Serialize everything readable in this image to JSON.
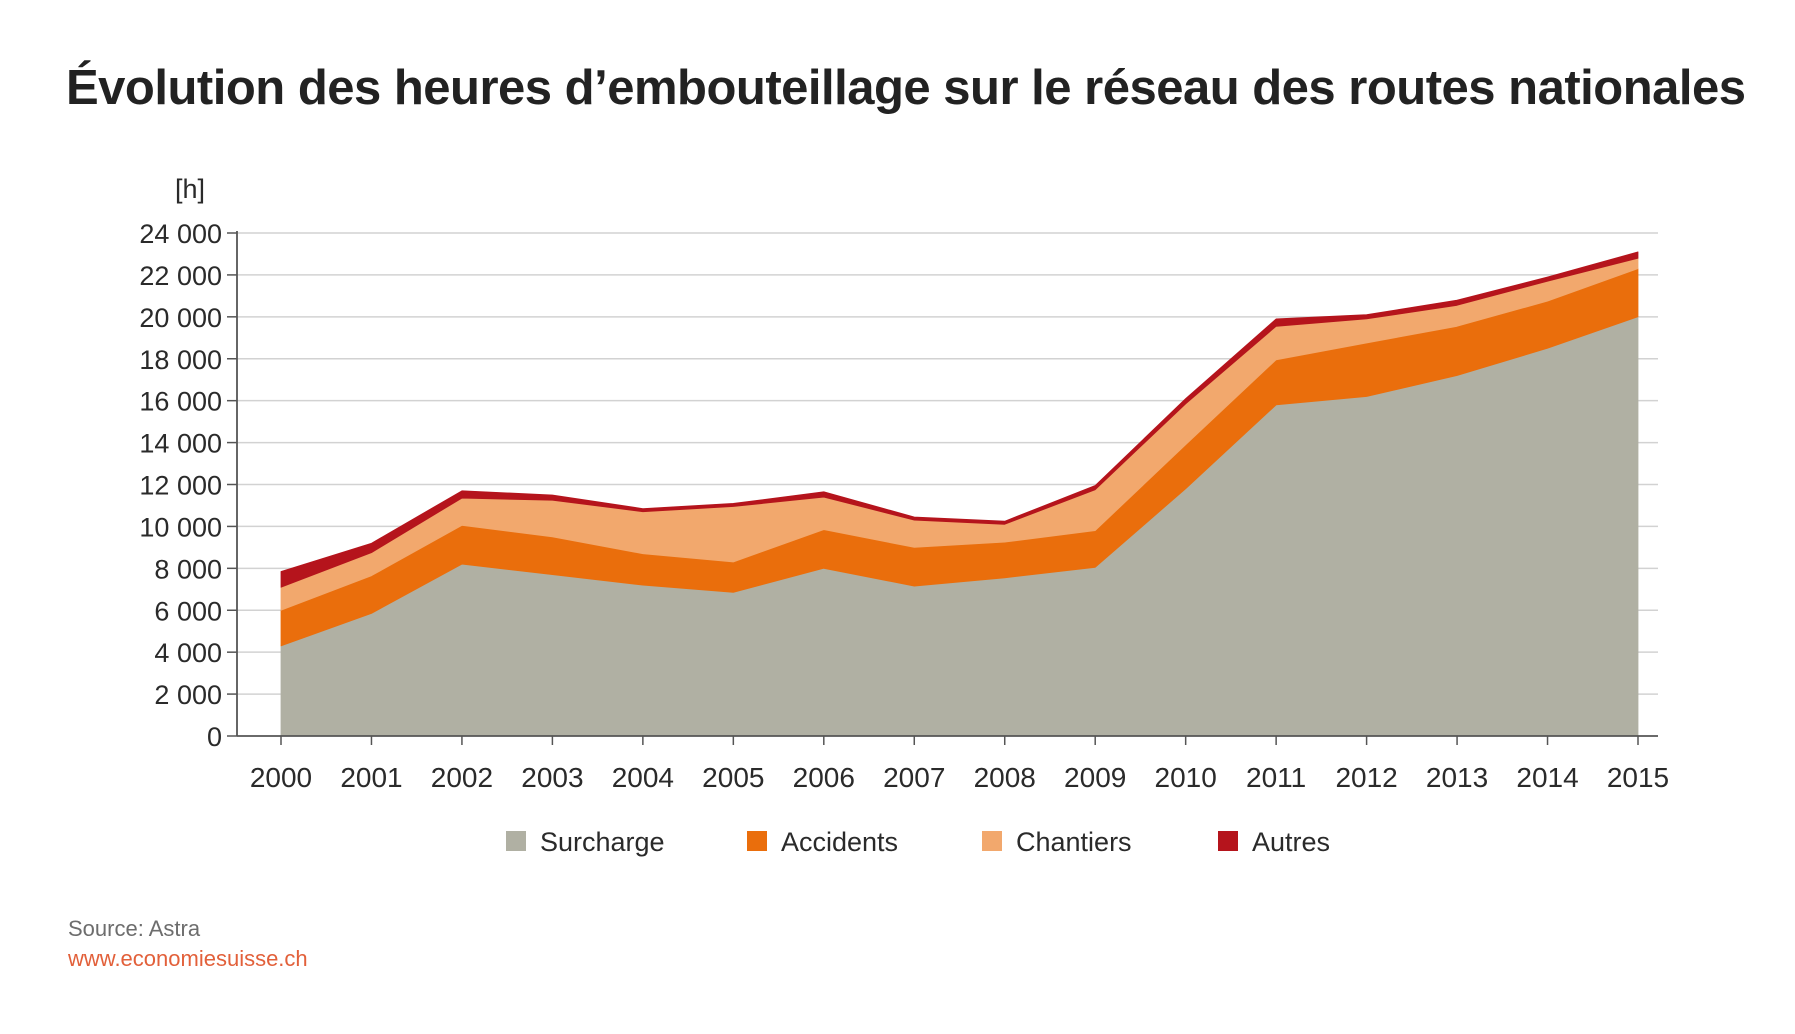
{
  "title": "Évolution des heures d’embouteillage sur le réseau des routes nationales",
  "source": "Source: Astra",
  "website": "www.economiesuisse.ch",
  "chart_data": {
    "type": "area",
    "stacked": true,
    "unit_label": "[h]",
    "ylim": [
      0,
      24000
    ],
    "yticks": [
      0,
      2000,
      4000,
      6000,
      8000,
      10000,
      12000,
      14000,
      16000,
      18000,
      20000,
      22000,
      24000
    ],
    "ytick_labels": [
      "0",
      "2 000",
      "4 000",
      "6 000",
      "8 000",
      "10 000",
      "12 000",
      "14 000",
      "16 000",
      "18 000",
      "20 000",
      "22 000",
      "24 000"
    ],
    "categories": [
      "2000",
      "2001",
      "2002",
      "2003",
      "2004",
      "2005",
      "2006",
      "2007",
      "2008",
      "2009",
      "2010",
      "2011",
      "2012",
      "2013",
      "2014",
      "2015"
    ],
    "grid": true,
    "legend_position": "bottom",
    "series": [
      {
        "name": "Surcharge",
        "color": "#b0b0a3",
        "values": [
          4300,
          5850,
          8200,
          7700,
          7200,
          6850,
          8000,
          7150,
          7550,
          8050,
          11800,
          15800,
          16200,
          17200,
          18500,
          20000
        ]
      },
      {
        "name": "Accidents",
        "color": "#ea6e0c",
        "values": [
          1700,
          1800,
          1850,
          1800,
          1500,
          1450,
          1850,
          1850,
          1700,
          1750,
          2100,
          2150,
          2550,
          2350,
          2250,
          2300
        ]
      },
      {
        "name": "Chantiers",
        "color": "#f2a86d",
        "values": [
          1100,
          1100,
          1300,
          1750,
          2000,
          2650,
          1550,
          1300,
          850,
          1950,
          1950,
          1600,
          1150,
          1000,
          950,
          500
        ]
      },
      {
        "name": "Autres",
        "color": "#b5141c",
        "values": [
          750,
          450,
          350,
          250,
          150,
          150,
          250,
          150,
          150,
          200,
          250,
          350,
          200,
          250,
          200,
          300
        ]
      }
    ]
  }
}
